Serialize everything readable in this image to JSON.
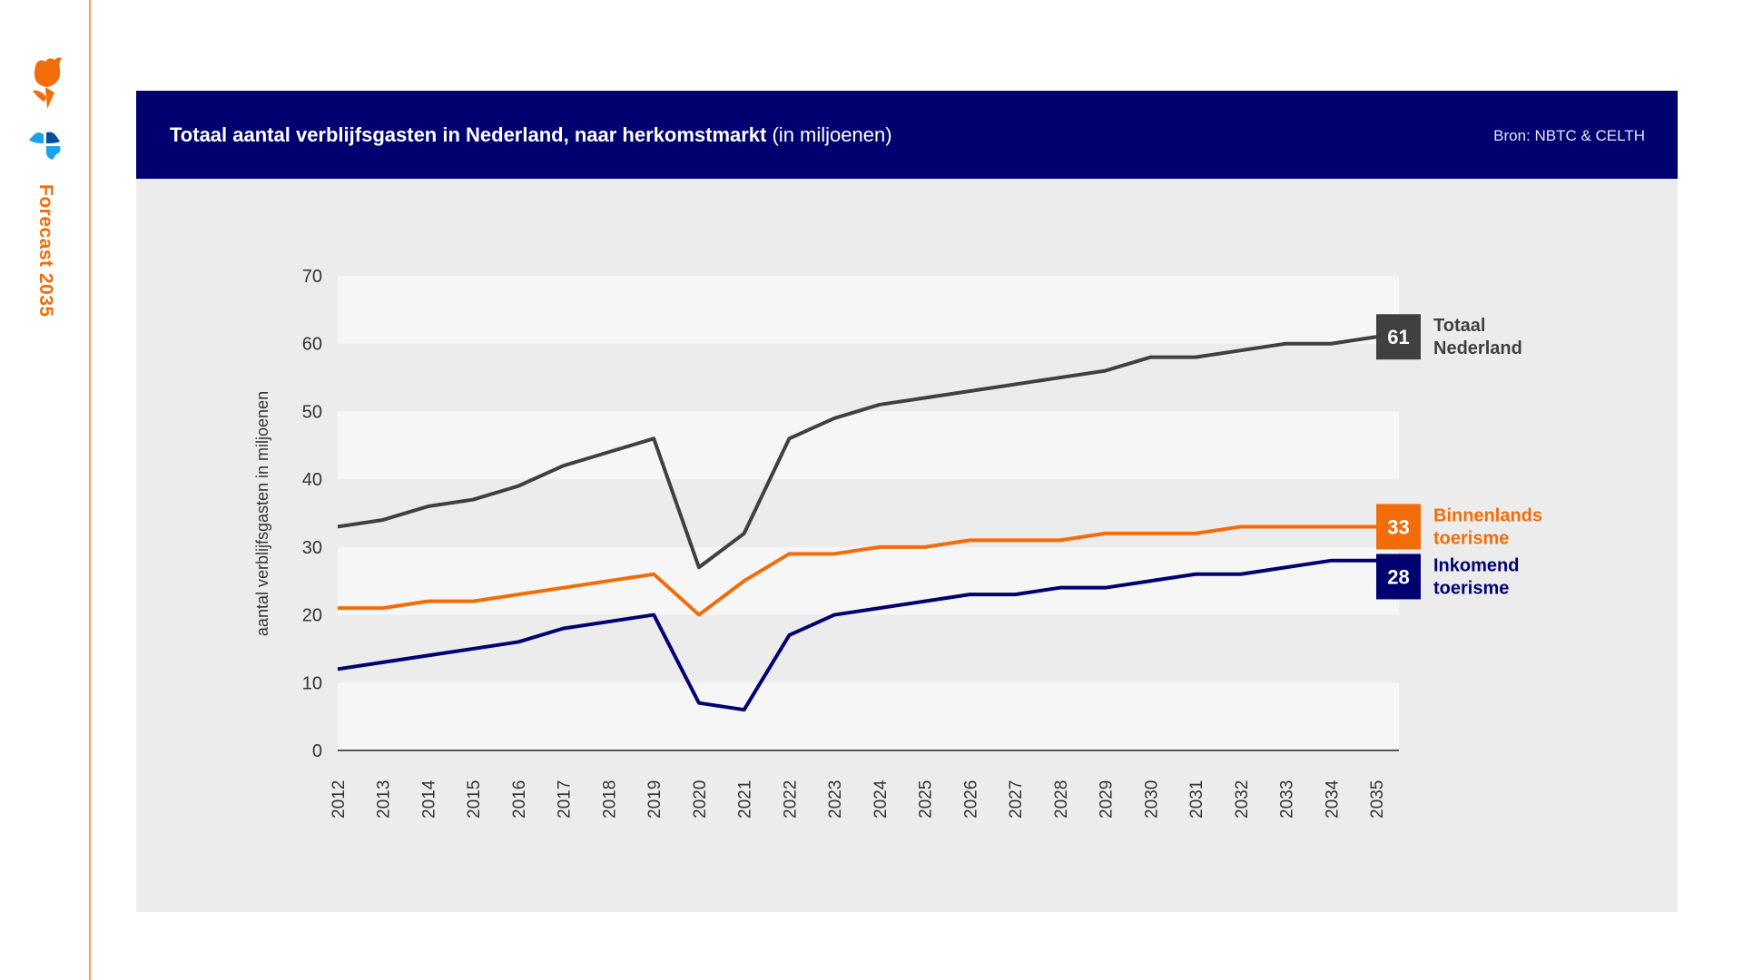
{
  "sidebar": {
    "label": "Forecast 2035",
    "logo_icons": [
      "tulip-icon",
      "hearts-clover-icon"
    ]
  },
  "header": {
    "title_bold": "Totaal aantal verblijfsgasten in Nederland, naar herkomstmarkt",
    "title_unit": "(in miljoenen)",
    "source": "Bron: NBTC & CELTH"
  },
  "colors": {
    "totaal": "#404040",
    "binnenlands": "#f36c0a",
    "inkomend": "#000070",
    "banner": "#000070"
  },
  "chart_data": {
    "type": "line",
    "title": "Totaal aantal verblijfsgasten in Nederland, naar herkomstmarkt (in miljoenen)",
    "ylabel": "aantal verblijfsgasten in miljoenen",
    "xlabel": "",
    "ylim": [
      0,
      70
    ],
    "yticks": [
      "0",
      "10",
      "20",
      "30",
      "40",
      "50",
      "60",
      "70"
    ],
    "grid": "alternating horizontal bands",
    "legend": "right, end-of-line labels",
    "categories": [
      "2012",
      "2013",
      "2014",
      "2015",
      "2016",
      "2017",
      "2018",
      "2019",
      "2020",
      "2021",
      "2022",
      "2023",
      "2024",
      "2025",
      "2026",
      "2027",
      "2028",
      "2029",
      "2030",
      "2031",
      "2032",
      "2033",
      "2034",
      "2035"
    ],
    "series": [
      {
        "name": "Totaal Nederland",
        "name_lines": [
          "Totaal",
          "Nederland"
        ],
        "end_label": "61",
        "color": "#404040",
        "values": [
          33,
          34,
          36,
          37,
          39,
          42,
          44,
          46,
          27,
          32,
          46,
          49,
          51,
          52,
          53,
          54,
          55,
          56,
          58,
          58,
          59,
          60,
          60,
          61
        ]
      },
      {
        "name": "Binnenlands toerisme",
        "name_lines": [
          "Binnenlands",
          "toerisme"
        ],
        "end_label": "33",
        "color": "#f36c0a",
        "values": [
          21,
          21,
          22,
          22,
          23,
          24,
          25,
          26,
          20,
          25,
          29,
          29,
          30,
          30,
          31,
          31,
          31,
          32,
          32,
          32,
          33,
          33,
          33,
          33
        ]
      },
      {
        "name": "Inkomend toerisme",
        "name_lines": [
          "Inkomend",
          "toerisme"
        ],
        "end_label": "28",
        "color": "#000070",
        "values": [
          12,
          13,
          14,
          15,
          16,
          18,
          19,
          20,
          7,
          6,
          17,
          20,
          21,
          22,
          23,
          23,
          24,
          24,
          25,
          26,
          26,
          27,
          28,
          28
        ]
      }
    ]
  }
}
